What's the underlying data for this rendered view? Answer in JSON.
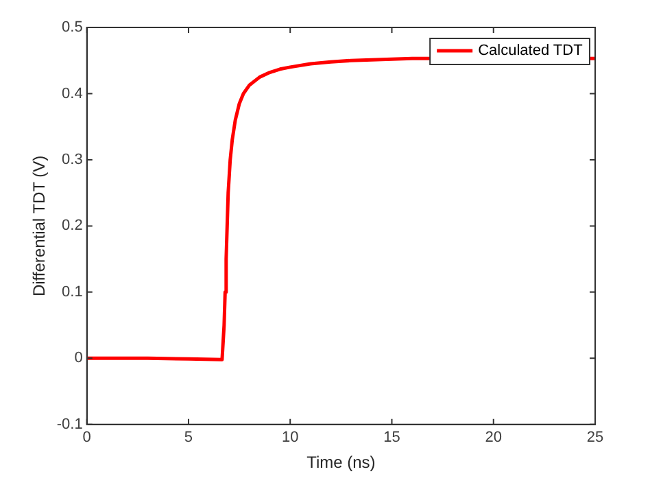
{
  "chart_data": {
    "type": "line",
    "xlabel": "Time (ns)",
    "ylabel": "Differential TDT (V)",
    "xlim": [
      0,
      25
    ],
    "xticks": [
      0,
      5,
      10,
      15,
      20,
      25
    ],
    "ylim": [
      -0.1,
      0.5
    ],
    "yticks": [
      -0.1,
      0,
      0.1,
      0.2,
      0.3,
      0.4,
      0.5
    ],
    "grid": false,
    "legend": "top right",
    "marker": "none",
    "line_style": "solid",
    "series": [
      {
        "name": "Calculated TDT",
        "color": "#ff0000",
        "x": [
          0,
          3,
          5,
          6.65,
          6.75,
          6.8,
          6.85,
          6.9,
          6.95,
          7.05,
          7.15,
          7.3,
          7.5,
          7.7,
          8,
          8.5,
          9,
          9.5,
          10,
          11,
          12,
          13,
          14,
          15,
          16,
          25
        ],
        "values": [
          0,
          0,
          -0.001,
          -0.002,
          0.05,
          0.1,
          0.15,
          0.2,
          0.25,
          0.3,
          0.33,
          0.36,
          0.385,
          0.4,
          0.413,
          0.425,
          0.432,
          0.437,
          0.44,
          0.445,
          0.448,
          0.45,
          0.451,
          0.452,
          0.453,
          0.453
        ]
      }
    ]
  }
}
